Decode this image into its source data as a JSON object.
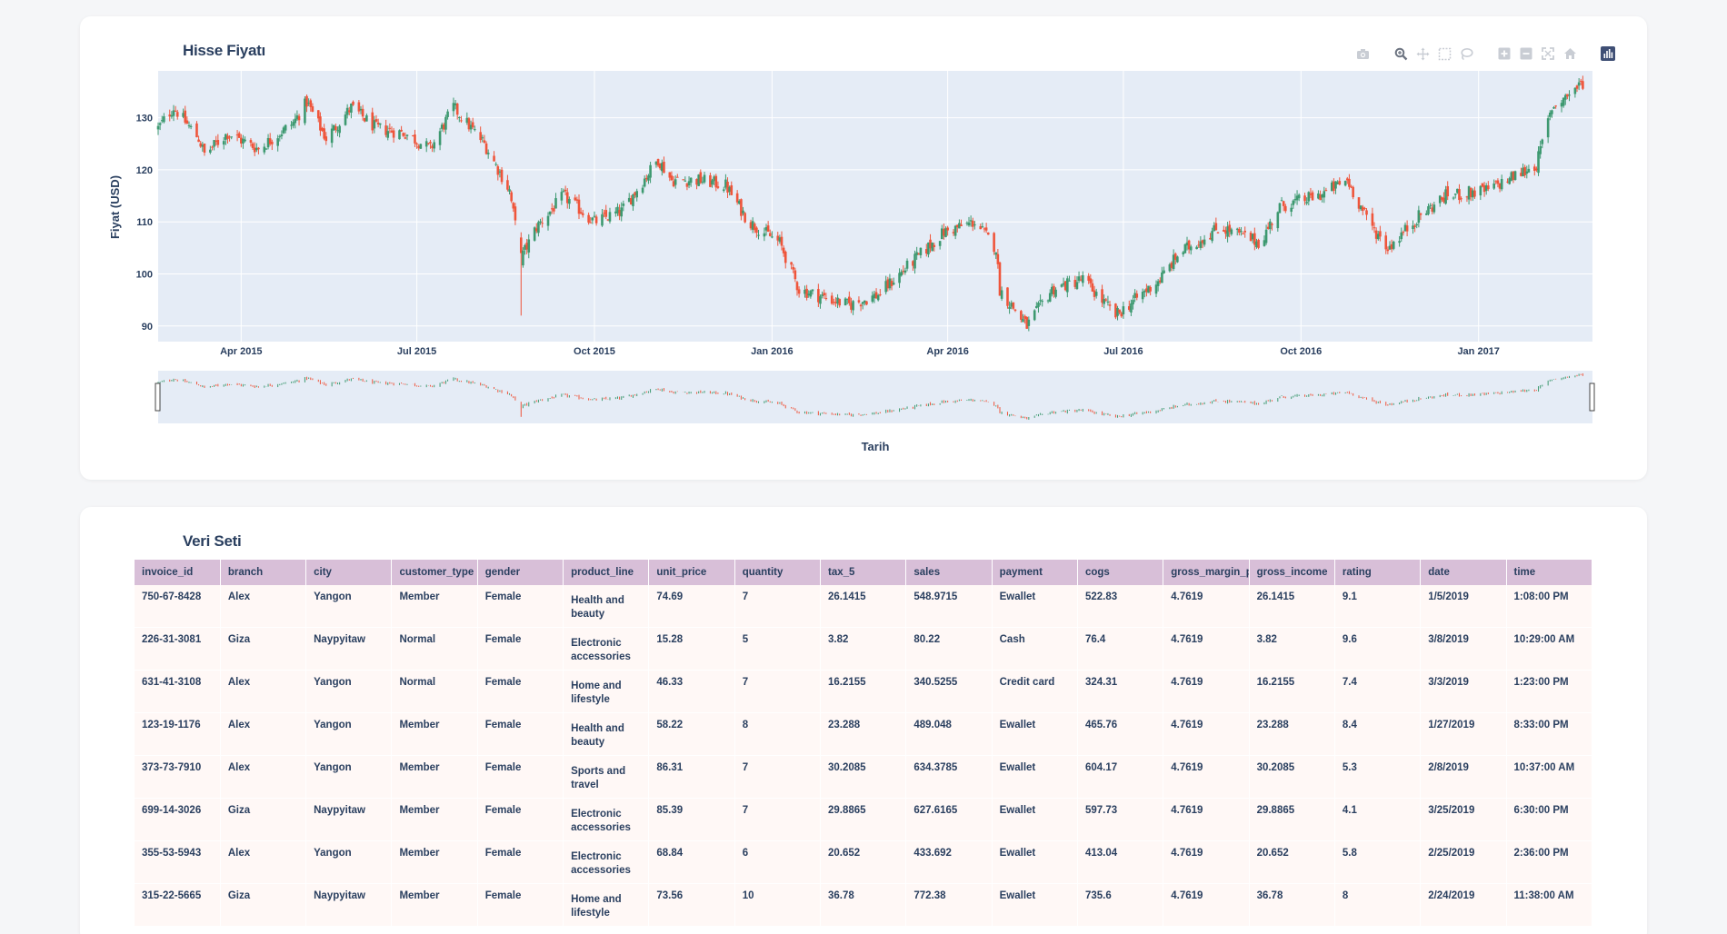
{
  "chart_card": {
    "title": "Hisse Fiyatı",
    "modebar_icons": [
      "camera-icon",
      "zoom-icon",
      "pan-icon",
      "box-select-icon",
      "lasso-icon",
      "zoom-in-icon",
      "zoom-out-icon",
      "autoscale-icon",
      "reset-axes-icon",
      "plotly-logo-icon"
    ]
  },
  "chart_data": {
    "type": "candlestick",
    "title": "Hisse Fiyatı",
    "xlabel": "Tarih",
    "ylabel": "Fiyat (USD)",
    "xlim": [
      "2015-02-17",
      "2017-03-01"
    ],
    "ylim": [
      87,
      139
    ],
    "yticks": [
      90,
      100,
      110,
      120,
      130
    ],
    "xticks": [
      {
        "date": "2015-04-01",
        "label": "Apr 2015"
      },
      {
        "date": "2015-07-01",
        "label": "Jul 2015"
      },
      {
        "date": "2015-10-01",
        "label": "Oct 2015"
      },
      {
        "date": "2016-01-01",
        "label": "Jan 2016"
      },
      {
        "date": "2016-04-01",
        "label": "Apr 2016"
      },
      {
        "date": "2016-07-01",
        "label": "Jul 2016"
      },
      {
        "date": "2016-10-01",
        "label": "Oct 2016"
      },
      {
        "date": "2017-01-01",
        "label": "Jan 2017"
      }
    ],
    "increasing_color": "#3d9970",
    "decreasing_color": "#ef553b",
    "grid": true,
    "rangeslider": true,
    "close_anchors": [
      {
        "date": "2015-02-17",
        "close": 128
      },
      {
        "date": "2015-02-25",
        "close": 132
      },
      {
        "date": "2015-03-10",
        "close": 126
      },
      {
        "date": "2015-03-13",
        "close": 123
      },
      {
        "date": "2015-03-25",
        "close": 127
      },
      {
        "date": "2015-04-10",
        "close": 124
      },
      {
        "date": "2015-04-28",
        "close": 129
      },
      {
        "date": "2015-05-05",
        "close": 133
      },
      {
        "date": "2015-05-15",
        "close": 126
      },
      {
        "date": "2015-05-28",
        "close": 132
      },
      {
        "date": "2015-06-10",
        "close": 128
      },
      {
        "date": "2015-06-25",
        "close": 127
      },
      {
        "date": "2015-07-08",
        "close": 124
      },
      {
        "date": "2015-07-20",
        "close": 132
      },
      {
        "date": "2015-08-05",
        "close": 125
      },
      {
        "date": "2015-08-18",
        "close": 116
      },
      {
        "date": "2015-08-24",
        "close": 103
      },
      {
        "date": "2015-09-01",
        "close": 109
      },
      {
        "date": "2015-09-15",
        "close": 115
      },
      {
        "date": "2015-10-01",
        "close": 110
      },
      {
        "date": "2015-10-15",
        "close": 112
      },
      {
        "date": "2015-11-03",
        "close": 122
      },
      {
        "date": "2015-11-10",
        "close": 118
      },
      {
        "date": "2015-11-25",
        "close": 118
      },
      {
        "date": "2015-12-08",
        "close": 117
      },
      {
        "date": "2015-12-20",
        "close": 110
      },
      {
        "date": "2016-01-05",
        "close": 106
      },
      {
        "date": "2016-01-15",
        "close": 97
      },
      {
        "date": "2016-02-10",
        "close": 94
      },
      {
        "date": "2016-02-25",
        "close": 96
      },
      {
        "date": "2016-03-10",
        "close": 101
      },
      {
        "date": "2016-03-30",
        "close": 108
      },
      {
        "date": "2016-04-15",
        "close": 110
      },
      {
        "date": "2016-04-26",
        "close": 105
      },
      {
        "date": "2016-04-28",
        "close": 97
      },
      {
        "date": "2016-05-12",
        "close": 90
      },
      {
        "date": "2016-05-25",
        "close": 97
      },
      {
        "date": "2016-06-10",
        "close": 99
      },
      {
        "date": "2016-06-27",
        "close": 92
      },
      {
        "date": "2016-07-20",
        "close": 99
      },
      {
        "date": "2016-07-30",
        "close": 104
      },
      {
        "date": "2016-08-20",
        "close": 109
      },
      {
        "date": "2016-09-10",
        "close": 106
      },
      {
        "date": "2016-09-20",
        "close": 113
      },
      {
        "date": "2016-10-10",
        "close": 115
      },
      {
        "date": "2016-10-25",
        "close": 118
      },
      {
        "date": "2016-11-05",
        "close": 110
      },
      {
        "date": "2016-11-15",
        "close": 105
      },
      {
        "date": "2016-12-01",
        "close": 111
      },
      {
        "date": "2016-12-15",
        "close": 115
      },
      {
        "date": "2017-01-05",
        "close": 116
      },
      {
        "date": "2017-01-31",
        "close": 121
      },
      {
        "date": "2017-02-08",
        "close": 132
      },
      {
        "date": "2017-02-25",
        "close": 137
      }
    ]
  },
  "table_card": {
    "title": "Veri Seti",
    "columns": [
      "invoice_id",
      "branch",
      "city",
      "customer_type",
      "gender",
      "product_line",
      "unit_price",
      "quantity",
      "tax_5",
      "sales",
      "payment",
      "cogs",
      "gross_margin_pe",
      "gross_income",
      "rating",
      "date",
      "time"
    ],
    "rows": [
      [
        "750-67-8428",
        "Alex",
        "Yangon",
        "Member",
        "Female",
        "Health and beauty",
        "74.69",
        "7",
        "26.1415",
        "548.9715",
        "Ewallet",
        "522.83",
        "4.7619",
        "26.1415",
        "9.1",
        "1/5/2019",
        "1:08:00 PM"
      ],
      [
        "226-31-3081",
        "Giza",
        "Naypyitaw",
        "Normal",
        "Female",
        "Electronic accessories",
        "15.28",
        "5",
        "3.82",
        "80.22",
        "Cash",
        "76.4",
        "4.7619",
        "3.82",
        "9.6",
        "3/8/2019",
        "10:29:00 AM"
      ],
      [
        "631-41-3108",
        "Alex",
        "Yangon",
        "Normal",
        "Female",
        "Home and lifestyle",
        "46.33",
        "7",
        "16.2155",
        "340.5255",
        "Credit card",
        "324.31",
        "4.7619",
        "16.2155",
        "7.4",
        "3/3/2019",
        "1:23:00 PM"
      ],
      [
        "123-19-1176",
        "Alex",
        "Yangon",
        "Member",
        "Female",
        "Health and beauty",
        "58.22",
        "8",
        "23.288",
        "489.048",
        "Ewallet",
        "465.76",
        "4.7619",
        "23.288",
        "8.4",
        "1/27/2019",
        "8:33:00 PM"
      ],
      [
        "373-73-7910",
        "Alex",
        "Yangon",
        "Member",
        "Female",
        "Sports and travel",
        "86.31",
        "7",
        "30.2085",
        "634.3785",
        "Ewallet",
        "604.17",
        "4.7619",
        "30.2085",
        "5.3",
        "2/8/2019",
        "10:37:00 AM"
      ],
      [
        "699-14-3026",
        "Giza",
        "Naypyitaw",
        "Member",
        "Female",
        "Electronic accessories",
        "85.39",
        "7",
        "29.8865",
        "627.6165",
        "Ewallet",
        "597.73",
        "4.7619",
        "29.8865",
        "4.1",
        "3/25/2019",
        "6:30:00 PM"
      ],
      [
        "355-53-5943",
        "Alex",
        "Yangon",
        "Member",
        "Female",
        "Electronic accessories",
        "68.84",
        "6",
        "20.652",
        "433.692",
        "Ewallet",
        "413.04",
        "4.7619",
        "20.652",
        "5.8",
        "2/25/2019",
        "2:36:00 PM"
      ],
      [
        "315-22-5665",
        "Giza",
        "Naypyitaw",
        "Member",
        "Female",
        "Home and lifestyle",
        "73.56",
        "10",
        "36.78",
        "772.38",
        "Ewallet",
        "735.6",
        "4.7619",
        "36.78",
        "8",
        "2/24/2019",
        "11:38:00 AM"
      ]
    ]
  }
}
